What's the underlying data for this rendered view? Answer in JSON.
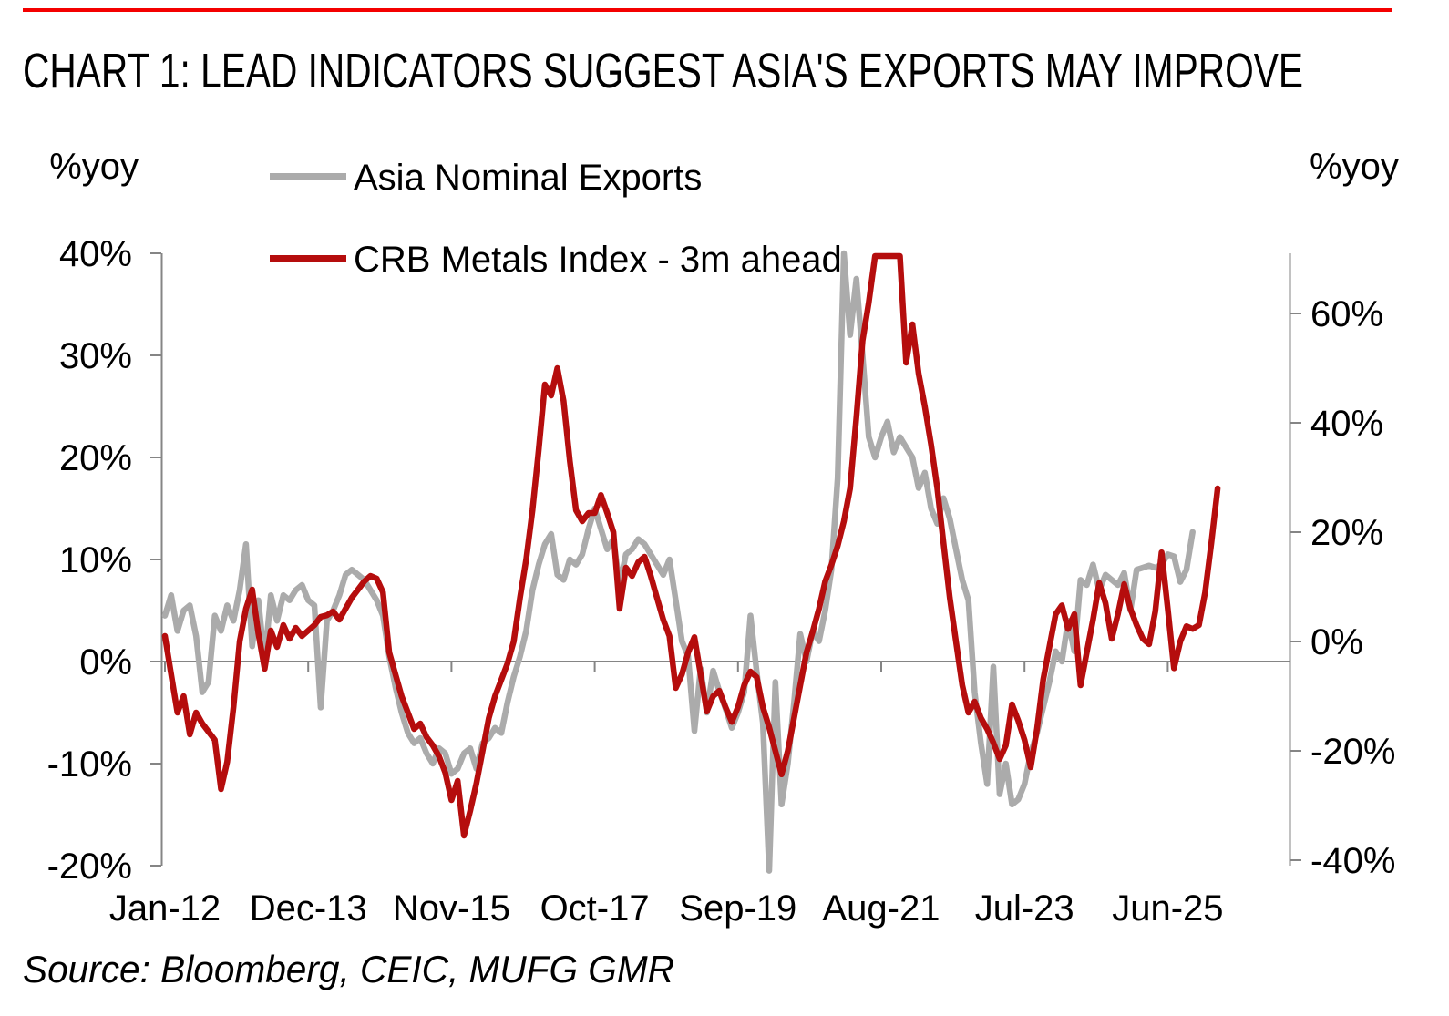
{
  "title": "CHART 1: LEAD INDICATORS SUGGEST ASIA'S EXPORTS MAY IMPROVE",
  "source": "Source: Bloomberg, CEIC, MUFG GMR",
  "colors": {
    "title_red": "#f40000",
    "rule_red": "#f40000",
    "crb_red": "#b50d0d",
    "asia_gray": "#ababab",
    "axis_gray": "#858585",
    "source_gray": "#595959"
  },
  "chart_data": {
    "type": "line",
    "title": "CHART 1: LEAD INDICATORS SUGGEST ASIA'S EXPORTS MAY IMPROVE",
    "source": "Source: Bloomberg, CEIC, MUFG GMR",
    "grid": "zero-line-only",
    "legend_position": "top-left-inside",
    "x_axis": {
      "start_month": "Jan-12",
      "months_between_ticks": 23,
      "tick_labels": [
        "Jan-12",
        "Dec-13",
        "Nov-15",
        "Oct-17",
        "Sep-19",
        "Aug-21",
        "Jul-23",
        "Jun-25"
      ]
    },
    "left_axis": {
      "label": "%yoy",
      "range": [
        -20,
        40
      ],
      "tick_values": [
        40,
        30,
        20,
        10,
        0,
        -10,
        -20
      ],
      "tick_labels": [
        "40%",
        "30%",
        "20%",
        "10%",
        "0%",
        "-10%",
        "-20%"
      ]
    },
    "right_axis": {
      "label": "%yoy",
      "range": [
        -41,
        71
      ],
      "tick_values": [
        60,
        40,
        20,
        0,
        -20,
        -40
      ],
      "tick_labels": [
        "60%",
        "40%",
        "20%",
        "0%",
        "-20%",
        "-40%"
      ]
    },
    "series": [
      {
        "name": "Asia Nominal Exports",
        "axis": "left",
        "color": "#ababab",
        "unit": "%yoy",
        "values": [
          4.5,
          6.5,
          3.0,
          5.0,
          5.5,
          2.5,
          -3.0,
          -2.0,
          4.5,
          3.0,
          5.5,
          4.0,
          7.0,
          11.5,
          1.5,
          6.0,
          0.0,
          6.5,
          4.0,
          6.5,
          6.0,
          7.0,
          7.5,
          6.0,
          5.5,
          -4.5,
          4.0,
          5.0,
          6.5,
          8.5,
          9.0,
          8.5,
          8.0,
          7.0,
          6.0,
          4.5,
          0.5,
          -2.5,
          -5.0,
          -7.0,
          -8.0,
          -7.5,
          -9.0,
          -10.0,
          -8.5,
          -9.0,
          -11.0,
          -10.5,
          -9.0,
          -8.5,
          -10.5,
          -8.0,
          -7.5,
          -6.5,
          -7.0,
          -4.0,
          -1.5,
          0.5,
          3.0,
          7.0,
          9.5,
          11.5,
          12.5,
          8.5,
          8.0,
          10.0,
          9.5,
          10.5,
          13.0,
          15.0,
          13.0,
          11.0,
          12.0,
          7.5,
          10.5,
          11.0,
          12.0,
          11.5,
          10.5,
          9.5,
          8.5,
          10.0,
          6.0,
          2.0,
          0.5,
          -6.8,
          -0.7,
          -5.0,
          -0.9,
          -2.9,
          -4.6,
          -6.5,
          -5.0,
          -3.0,
          4.5,
          -1.0,
          -6.0,
          -20.5,
          -2.0,
          -14.0,
          -10.0,
          -4.0,
          2.7,
          0.0,
          3.0,
          2.0,
          5.0,
          9.0,
          18.0,
          40.0,
          32.0,
          37.5,
          30.0,
          22.0,
          20.0,
          22.0,
          23.5,
          20.5,
          22.0,
          21.0,
          20.0,
          17.0,
          18.5,
          15.0,
          13.5,
          16.0,
          14.0,
          11.0,
          8.0,
          6.0,
          -3.0,
          -8.0,
          -12.0,
          -0.5,
          -13.0,
          -10.0,
          -14.0,
          -13.5,
          -12.0,
          -9.0,
          -7.0,
          -4.5,
          -2.0,
          1.0,
          0.0,
          4.0,
          1.0,
          8.0,
          7.5,
          9.5,
          7.0,
          8.5,
          8.0,
          7.5,
          8.7,
          5.0,
          9.0,
          9.2,
          9.4,
          9.2,
          9.5,
          10.5,
          10.3,
          7.8,
          9.0,
          12.7
        ]
      },
      {
        "name": "CRB Metals Index - 3m ahead",
        "axis": "right",
        "color": "#b50d0d",
        "unit": "%yoy",
        "values": [
          1.0,
          -6.0,
          -13.0,
          -10.0,
          -17.0,
          -13.0,
          -15.0,
          -16.5,
          -18.0,
          -27.0,
          -22.0,
          -12.0,
          0.0,
          6.0,
          9.5,
          1.5,
          -5.0,
          2.0,
          -1.0,
          3.0,
          0.5,
          2.5,
          1.0,
          2.0,
          3.0,
          4.5,
          4.8,
          5.5,
          4.0,
          6.0,
          8.0,
          9.5,
          11.0,
          12.0,
          11.5,
          9.0,
          -2.0,
          -6.0,
          -10.0,
          -13.0,
          -16.0,
          -15.0,
          -17.5,
          -19.0,
          -21.0,
          -24.0,
          -29.0,
          -25.5,
          -35.5,
          -31.0,
          -26.0,
          -20.0,
          -14.0,
          -10.0,
          -7.0,
          -4.0,
          0.0,
          8.0,
          15.0,
          24.0,
          35.0,
          47.0,
          45.0,
          50.0,
          44.0,
          33.0,
          24.0,
          22.0,
          23.5,
          23.5,
          26.8,
          23.5,
          20.0,
          6.0,
          13.5,
          12.0,
          14.5,
          15.5,
          12.0,
          8.0,
          4.0,
          1.0,
          -8.5,
          -6.0,
          -2.0,
          0.8,
          -6.0,
          -12.8,
          -10.0,
          -9.0,
          -12.0,
          -14.7,
          -12.0,
          -8.0,
          -5.5,
          -6.5,
          -12.0,
          -15.7,
          -20.0,
          -24.3,
          -20.0,
          -14.0,
          -8.0,
          -2.0,
          1.8,
          6.0,
          11.0,
          14.0,
          17.5,
          22.0,
          28.0,
          41.0,
          55.0,
          62.0,
          70.5,
          70.5,
          70.5,
          70.5,
          70.5,
          51.0,
          58.0,
          49.0,
          43.0,
          36.0,
          28.0,
          18.0,
          8.0,
          0.0,
          -8.0,
          -13.0,
          -11.0,
          -14.0,
          -16.0,
          -18.5,
          -21.5,
          -19.0,
          -11.5,
          -14.5,
          -18.0,
          -23.0,
          -16.0,
          -7.0,
          -1.0,
          5.0,
          6.6,
          2.3,
          5.0,
          -8.0,
          -2.0,
          4.0,
          10.7,
          7.0,
          0.5,
          5.0,
          10.5,
          6.0,
          3.0,
          0.5,
          -0.5,
          5.5,
          16.3,
          6.0,
          -4.9,
          0.0,
          2.8,
          2.3,
          3.0,
          9.0,
          18.0,
          28.0
        ]
      }
    ]
  }
}
